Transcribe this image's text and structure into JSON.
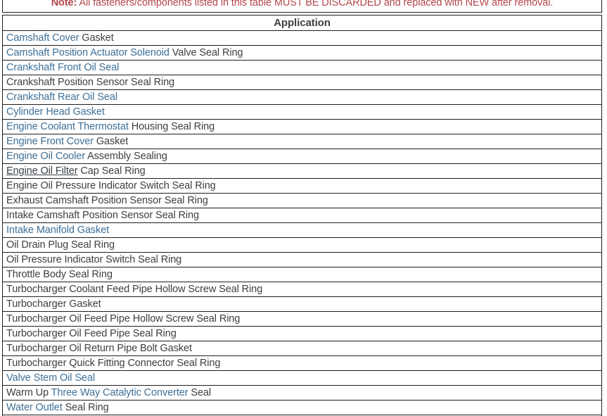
{
  "colors": {
    "note_red": "#b4464b",
    "link_blue": "#3e6f96",
    "link_hover_dark": "#3a4147",
    "body_text": "#3c4043",
    "border": "#1f1f1f"
  },
  "note": {
    "prefix": "Note:",
    "text": " All fasteners/components listed in this table MUST BE DISCARDED and replaced with NEW after removal."
  },
  "table": {
    "header": "Application",
    "rows": [
      {
        "segments": [
          {
            "text": "Camshaft Cover",
            "style": "link"
          },
          {
            "text": " Gasket",
            "style": "plain"
          }
        ]
      },
      {
        "segments": [
          {
            "text": "Camshaft Position Actuator Solenoid",
            "style": "link"
          },
          {
            "text": " Valve Seal Ring",
            "style": "plain"
          }
        ]
      },
      {
        "segments": [
          {
            "text": "Crankshaft Front Oil Seal",
            "style": "link"
          }
        ]
      },
      {
        "segments": [
          {
            "text": "Crankshaft Position Sensor Seal Ring",
            "style": "plain"
          }
        ]
      },
      {
        "segments": [
          {
            "text": "Crankshaft Rear Oil Seal",
            "style": "link"
          }
        ]
      },
      {
        "segments": [
          {
            "text": "Cylinder Head Gasket",
            "style": "link"
          }
        ]
      },
      {
        "segments": [
          {
            "text": "Engine Coolant Thermostat",
            "style": "link"
          },
          {
            "text": " Housing Seal Ring",
            "style": "plain"
          }
        ]
      },
      {
        "segments": [
          {
            "text": "Engine Front Cover",
            "style": "link"
          },
          {
            "text": " Gasket",
            "style": "plain"
          }
        ]
      },
      {
        "segments": [
          {
            "text": "Engine Oil Cooler",
            "style": "link"
          },
          {
            "text": " Assembly Sealing",
            "style": "plain"
          }
        ]
      },
      {
        "segments": [
          {
            "text": "Engine Oil Filter",
            "style": "link-hover"
          },
          {
            "text": " Cap Seal Ring",
            "style": "plain"
          }
        ]
      },
      {
        "segments": [
          {
            "text": "Engine Oil Pressure Indicator Switch Seal Ring",
            "style": "plain"
          }
        ]
      },
      {
        "segments": [
          {
            "text": "Exhaust Camshaft Position Sensor Seal Ring",
            "style": "plain"
          }
        ]
      },
      {
        "segments": [
          {
            "text": "Intake Camshaft Position Sensor Seal Ring",
            "style": "plain"
          }
        ]
      },
      {
        "segments": [
          {
            "text": "Intake Manifold Gasket",
            "style": "link"
          }
        ]
      },
      {
        "segments": [
          {
            "text": "Oil Drain Plug Seal Ring",
            "style": "plain"
          }
        ]
      },
      {
        "segments": [
          {
            "text": "Oil Pressure Indicator Switch Seal Ring",
            "style": "plain"
          }
        ]
      },
      {
        "segments": [
          {
            "text": "Throttle Body Seal Ring",
            "style": "plain"
          }
        ]
      },
      {
        "segments": [
          {
            "text": "Turbocharger Coolant Feed Pipe Hollow Screw Seal Ring",
            "style": "plain"
          }
        ]
      },
      {
        "segments": [
          {
            "text": "Turbocharger Gasket",
            "style": "plain"
          }
        ]
      },
      {
        "segments": [
          {
            "text": "Turbocharger Oil Feed Pipe Hollow Screw Seal Ring",
            "style": "plain"
          }
        ]
      },
      {
        "segments": [
          {
            "text": "Turbocharger Oil Feed Pipe Seal Ring",
            "style": "plain"
          }
        ]
      },
      {
        "segments": [
          {
            "text": "Turbocharger Oil Return Pipe Bolt Gasket",
            "style": "plain"
          }
        ]
      },
      {
        "segments": [
          {
            "text": "Turbocharger Quick Fitting Connector Seal Ring",
            "style": "plain"
          }
        ]
      },
      {
        "segments": [
          {
            "text": "Valve Stem Oil Seal",
            "style": "link"
          }
        ]
      },
      {
        "segments": [
          {
            "text": "Warm Up ",
            "style": "plain"
          },
          {
            "text": "Three Way Catalytic Converter",
            "style": "link"
          },
          {
            "text": " Seal",
            "style": "plain"
          }
        ]
      },
      {
        "segments": [
          {
            "text": "Water Outlet",
            "style": "link"
          },
          {
            "text": " Seal Ring",
            "style": "plain"
          }
        ]
      }
    ]
  }
}
